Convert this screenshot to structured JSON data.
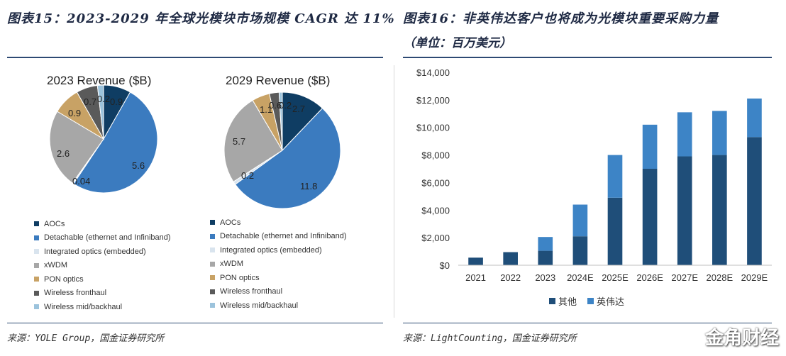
{
  "left_figure": {
    "title": "图表15：2023-2029 年全球光模块市场规模 CAGR 达 11%",
    "source": "来源：YOLE Group，国金证券研究所"
  },
  "right_figure": {
    "title": "图表16：非英伟达客户也将成为光模块重要采购力量",
    "subtitle": "（单位：百万美元）",
    "source": "来源：LightCounting，国金证券研究所"
  },
  "watermark": "金角财经",
  "colors": {
    "AOCs": "#0f3d63",
    "Detachable": "#3b7bbf",
    "Integrated": "#d9e4ee",
    "xWDM": "#a7a7a7",
    "PON": "#c8a265",
    "Fronthaul": "#5a5a5a",
    "Midhaul": "#9cc3dc",
    "bar_other": "#1f4e79",
    "bar_nvidia": "#3d84c6"
  },
  "chart_data": [
    {
      "type": "pie",
      "title": "2023 Revenue ($B)",
      "categories": [
        "AOCs",
        "Detachable (ethernet and Infiniband)",
        "Integrated optics (embedded)",
        "xWDM",
        "PON optics",
        "Wireless fronthaul",
        "Wireless mid/backhaul"
      ],
      "values": [
        0.9,
        5.6,
        0.04,
        2.6,
        0.9,
        0.7,
        0.2
      ],
      "labels": [
        "0.9",
        "5.6",
        "0.04",
        "2.6",
        "0.9",
        "0.7",
        "0.2"
      ]
    },
    {
      "type": "pie",
      "title": "2029 Revenue ($B)",
      "categories": [
        "AOCs",
        "Detachable (ethernet and Infiniband)",
        "Integrated optics (embedded)",
        "xWDM",
        "PON optics",
        "Wireless fronthaul",
        "Wireless mid/backhaul"
      ],
      "values": [
        2.7,
        11.8,
        0.2,
        5.7,
        1.1,
        0.6,
        0.2
      ],
      "labels": [
        "2.7",
        "11.8",
        "0.2",
        "5.7",
        "1.1",
        "0.6",
        "0.2"
      ]
    },
    {
      "type": "bar",
      "stacked": true,
      "categories": [
        "2021",
        "2022",
        "2023",
        "2024E",
        "2025E",
        "2026E",
        "2027E",
        "2028E",
        "2029E"
      ],
      "series": [
        {
          "name": "其他",
          "values": [
            550,
            950,
            1050,
            2100,
            4900,
            7000,
            7900,
            8000,
            9300
          ]
        },
        {
          "name": "英伟达",
          "values": [
            0,
            0,
            1000,
            2300,
            3100,
            3200,
            3200,
            3200,
            2800
          ]
        }
      ],
      "ylim": [
        0,
        14000
      ],
      "yticks": [
        "$0",
        "$2,000",
        "$4,000",
        "$6,000",
        "$8,000",
        "$10,000",
        "$12,000",
        "$14,000"
      ],
      "legend_position": "bottom"
    }
  ]
}
